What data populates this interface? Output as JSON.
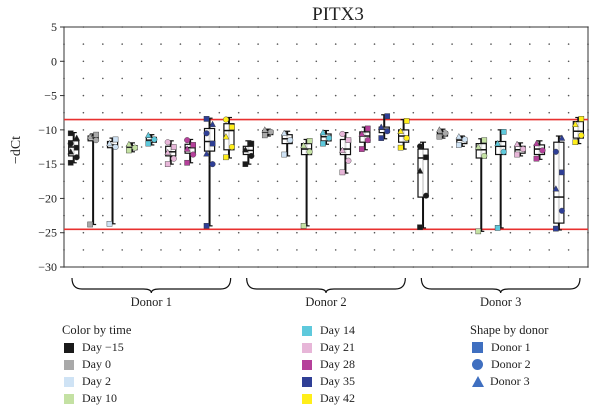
{
  "chart_data": {
    "type": "boxplot",
    "title": "PITX3",
    "ylabel": "−dCt",
    "ylim": [
      -30,
      5
    ],
    "yticks": [
      5,
      0,
      -5,
      -10,
      -15,
      -20,
      -25,
      -30
    ],
    "ytick_labels": [
      "5",
      "0",
      "−5",
      "−10",
      "−15",
      "−20",
      "−25",
      "−30"
    ],
    "reference_lines": [
      -8.5,
      -24.5
    ],
    "reference_line_color": "#e8302f",
    "groups": [
      {
        "label": "Donor 1",
        "boxes": [
          {
            "day": "Day −15",
            "min": -14.8,
            "q1": -13.8,
            "median": -12.5,
            "q3": -11.6,
            "max": -10.4,
            "points": [
              -14.8,
              -14.0,
              -13.2,
              -12.6,
              -12.0,
              -11.2,
              -10.5
            ]
          },
          {
            "day": "Day 0",
            "min": -23.8,
            "q1": -11.6,
            "median": -11.2,
            "q3": -10.9,
            "max": -10.6,
            "points": [
              -23.8,
              -11.5,
              -11.0,
              -10.7
            ]
          },
          {
            "day": "Day 2",
            "min": -23.7,
            "q1": -12.6,
            "median": -12.2,
            "q3": -11.7,
            "max": -11.2,
            "points": [
              -23.7,
              -12.5,
              -12.0,
              -11.4
            ]
          },
          {
            "day": "Day 10",
            "min": -13.2,
            "q1": -12.9,
            "median": -12.6,
            "q3": -12.3,
            "max": -11.9,
            "points": [
              -13.0,
              -12.6,
              -12.1
            ]
          },
          {
            "day": "Day 14",
            "min": -12.2,
            "q1": -11.8,
            "median": -11.5,
            "q3": -11.1,
            "max": -10.7,
            "points": [
              -12.0,
              -11.4,
              -10.8
            ]
          },
          {
            "day": "Day 21",
            "min": -15.0,
            "q1": -13.8,
            "median": -13.2,
            "q3": -12.4,
            "max": -11.6,
            "points": [
              -15.0,
              -14.2,
              -13.3,
              -12.5,
              -11.8
            ]
          },
          {
            "day": "Day 28",
            "min": -14.8,
            "q1": -13.4,
            "median": -12.6,
            "q3": -12.1,
            "max": -11.4,
            "points": [
              -14.8,
              -13.6,
              -12.8,
              -12.2,
              -11.5
            ]
          },
          {
            "day": "Day 35",
            "min": -24.0,
            "q1": -13.1,
            "median": -11.7,
            "q3": -9.8,
            "max": -8.3,
            "points": [
              -24.0,
              -15.0,
              -13.5,
              -12.0,
              -10.5,
              -9.2,
              -8.4
            ]
          },
          {
            "day": "Day 42",
            "min": -14.1,
            "q1": -12.9,
            "median": -10.1,
            "q3": -9.1,
            "max": -8.2,
            "points": [
              -14.0,
              -12.5,
              -11.0,
              -9.6,
              -8.5
            ]
          }
        ]
      },
      {
        "label": "Donor 2",
        "boxes": [
          {
            "day": "Day −15",
            "min": -15.0,
            "q1": -13.6,
            "median": -13.0,
            "q3": -12.4,
            "max": -11.6,
            "points": [
              -15.0,
              -13.8,
              -12.9,
              -12.0
            ]
          },
          {
            "day": "Day 0",
            "min": -10.9,
            "q1": -10.7,
            "median": -10.4,
            "q3": -10.1,
            "max": -9.9,
            "points": [
              -10.8,
              -10.3,
              -10.0
            ]
          },
          {
            "day": "Day 2",
            "min": -13.8,
            "q1": -12.0,
            "median": -11.3,
            "q3": -10.7,
            "max": -10.2,
            "points": [
              -13.6,
              -11.5,
              -10.5
            ]
          },
          {
            "day": "Day 10",
            "min": -24.0,
            "q1": -13.6,
            "median": -12.8,
            "q3": -12.0,
            "max": -11.4,
            "points": [
              -24.0,
              -13.2,
              -12.3,
              -11.6
            ]
          },
          {
            "day": "Day 14",
            "min": -12.1,
            "q1": -11.6,
            "median": -11.0,
            "q3": -10.6,
            "max": -10.1,
            "points": [
              -12.0,
              -11.2,
              -10.4
            ]
          },
          {
            "day": "Day 21",
            "min": -16.3,
            "q1": -13.6,
            "median": -12.8,
            "q3": -11.4,
            "max": -10.4,
            "points": [
              -16.2,
              -14.5,
              -13.0,
              -11.5,
              -10.6
            ]
          },
          {
            "day": "Day 28",
            "min": -12.9,
            "q1": -11.8,
            "median": -10.9,
            "q3": -10.3,
            "max": -9.6,
            "points": [
              -12.8,
              -11.5,
              -10.6,
              -9.8
            ]
          },
          {
            "day": "Day 35",
            "min": -11.3,
            "q1": -10.4,
            "median": -9.9,
            "q3": -9.6,
            "max": -7.8,
            "points": [
              -11.2,
              -10.2,
              -9.6,
              -8.0
            ]
          },
          {
            "day": "Day 42",
            "min": -12.8,
            "q1": -11.8,
            "median": -10.9,
            "q3": -10.0,
            "max": -8.5,
            "points": [
              -12.6,
              -11.2,
              -10.2,
              -8.7
            ]
          }
        ]
      },
      {
        "label": "Donor 3",
        "boxes": [
          {
            "day": "Day −15",
            "min": -24.3,
            "q1": -19.8,
            "median": -14.1,
            "q3": -12.8,
            "max": -11.8,
            "points": [
              -24.2,
              -19.6,
              -16.0,
              -14.0,
              -12.4
            ]
          },
          {
            "day": "Day 0",
            "min": -11.2,
            "q1": -10.9,
            "median": -10.6,
            "q3": -10.3,
            "max": -9.9,
            "points": [
              -11.0,
              -10.5,
              -10.0
            ]
          },
          {
            "day": "Day 2",
            "min": -12.4,
            "q1": -12.0,
            "median": -11.5,
            "q3": -11.2,
            "max": -10.9,
            "points": [
              -12.2,
              -11.4,
              -11.0
            ]
          },
          {
            "day": "Day 10",
            "min": -24.8,
            "q1": -14.1,
            "median": -12.9,
            "q3": -12.0,
            "max": -11.3,
            "points": [
              -24.8,
              -13.8,
              -12.5,
              -11.5
            ]
          },
          {
            "day": "Day 14",
            "min": -24.3,
            "q1": -13.6,
            "median": -12.4,
            "q3": -11.7,
            "max": -10.0,
            "points": [
              -24.3,
              -13.2,
              -12.0,
              -10.3
            ]
          },
          {
            "day": "Day 21",
            "min": -13.8,
            "q1": -13.4,
            "median": -12.9,
            "q3": -12.4,
            "max": -11.9,
            "points": [
              -13.6,
              -12.8,
              -12.1
            ]
          },
          {
            "day": "Day 28",
            "min": -14.3,
            "q1": -13.6,
            "median": -12.8,
            "q3": -12.2,
            "max": -11.6,
            "points": [
              -14.2,
              -13.0,
              -12.0
            ]
          },
          {
            "day": "Day 35",
            "min": -24.6,
            "q1": -23.6,
            "median": -19.8,
            "q3": -11.8,
            "max": -10.9,
            "points": [
              -24.4,
              -21.8,
              -18.6,
              -16.2,
              -13.2,
              -11.2
            ]
          },
          {
            "day": "Day 42",
            "min": -12.0,
            "q1": -11.2,
            "median": -10.2,
            "q3": -8.8,
            "max": -8.2,
            "points": [
              -11.8,
              -10.8,
              -9.2,
              -8.4
            ]
          }
        ]
      }
    ],
    "day_colors": {
      "Day −15": "#1a1a1a",
      "Day 0": "#a9a9a9",
      "Day 2": "#cfe3f5",
      "Day 10": "#c4e1a3",
      "Day 14": "#5ec9dc",
      "Day 21": "#e7b6d8",
      "Day 28": "#b5409a",
      "Day 35": "#2f3f96",
      "Day 42": "#ffee1a"
    },
    "legend_color": {
      "title": "Color by time",
      "items": [
        {
          "label": "Day −15",
          "color": "#1a1a1a"
        },
        {
          "label": "Day 0",
          "color": "#a9a9a9"
        },
        {
          "label": "Day 2",
          "color": "#cfe3f5"
        },
        {
          "label": "Day 10",
          "color": "#c4e1a3"
        },
        {
          "label": "Day 14",
          "color": "#5ec9dc"
        },
        {
          "label": "Day 21",
          "color": "#e7b6d8"
        },
        {
          "label": "Day 28",
          "color": "#b5409a"
        },
        {
          "label": "Day 35",
          "color": "#2f3f96"
        },
        {
          "label": "Day 42",
          "color": "#ffee1a"
        }
      ]
    },
    "legend_shape": {
      "title": "Shape by donor",
      "items": [
        {
          "label": "Donor 1",
          "shape": "square",
          "color": "#3f6fc0"
        },
        {
          "label": "Donor 2",
          "shape": "circle",
          "color": "#3f6fc0"
        },
        {
          "label": "Donor 3",
          "shape": "triangle",
          "color": "#3f6fc0"
        }
      ]
    }
  }
}
